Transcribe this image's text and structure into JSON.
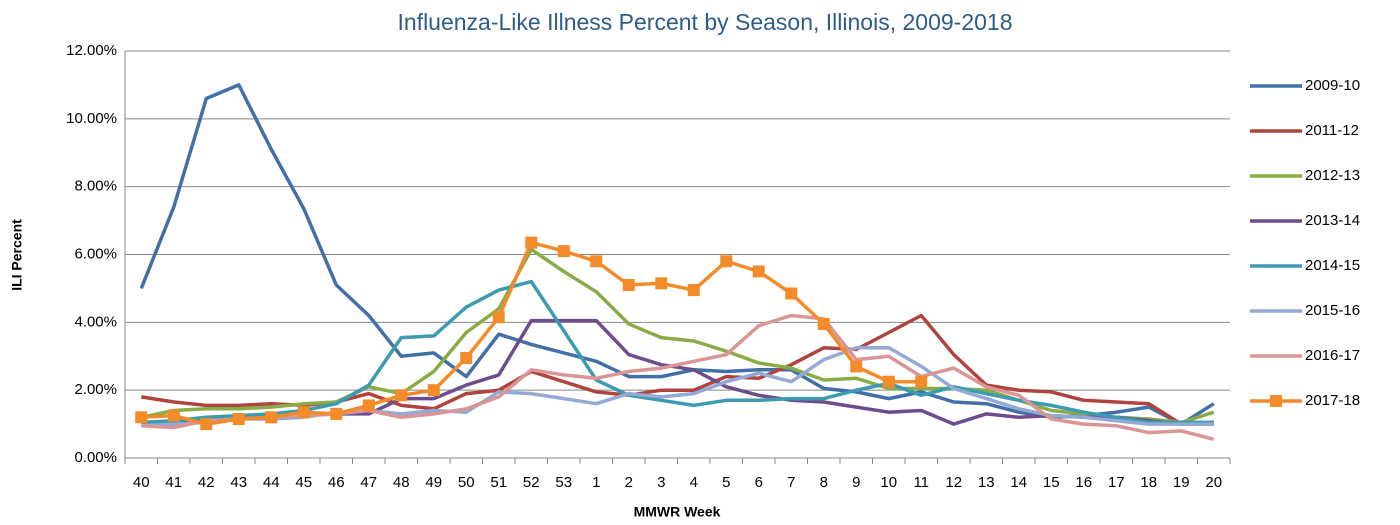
{
  "chart_data": {
    "type": "line",
    "title": "Influenza-Like Illness Percent by Season, Illinois, 2009-2018",
    "xlabel": "MMWR Week",
    "ylabel": "ILI Percent",
    "categories": [
      "40",
      "41",
      "42",
      "43",
      "44",
      "45",
      "46",
      "47",
      "48",
      "49",
      "50",
      "51",
      "52",
      "53",
      "1",
      "2",
      "3",
      "4",
      "5",
      "6",
      "7",
      "8",
      "9",
      "10",
      "11",
      "12",
      "13",
      "14",
      "15",
      "16",
      "17",
      "18",
      "19",
      "20"
    ],
    "ylim": [
      0,
      12
    ],
    "yticks": [
      {
        "value": 0,
        "label": "0.00%"
      },
      {
        "value": 2,
        "label": "2.00%"
      },
      {
        "value": 4,
        "label": "4.00%"
      },
      {
        "value": 6,
        "label": "6.00%"
      },
      {
        "value": 8,
        "label": "8.00%"
      },
      {
        "value": 10,
        "label": "10.00%"
      },
      {
        "value": 12,
        "label": "12.00%"
      }
    ],
    "grid": true,
    "legend": "right",
    "series": [
      {
        "name": "2009-10",
        "color": "#4170a8",
        "values": [
          5.0,
          7.4,
          10.6,
          11.0,
          9.1,
          7.35,
          5.1,
          4.2,
          3.0,
          3.1,
          2.4,
          3.65,
          3.35,
          3.1,
          2.85,
          2.4,
          2.4,
          2.6,
          2.55,
          2.6,
          2.6,
          2.05,
          1.95,
          1.75,
          1.95,
          1.65,
          1.6,
          1.35,
          1.2,
          1.25,
          1.35,
          1.5,
          1.0,
          1.6
        ]
      },
      {
        "name": "2011-12",
        "color": "#b1433f",
        "values": [
          1.8,
          1.65,
          1.55,
          1.55,
          1.6,
          1.55,
          1.65,
          1.9,
          1.55,
          1.45,
          1.9,
          2.0,
          2.55,
          2.25,
          1.95,
          1.85,
          2.0,
          2.0,
          2.4,
          2.35,
          2.75,
          3.25,
          3.2,
          3.7,
          4.2,
          3.05,
          2.15,
          2.0,
          1.95,
          1.7,
          1.65,
          1.6,
          1.0,
          1.05
        ]
      },
      {
        "name": "2012-13",
        "color": "#8aac46",
        "values": [
          1.2,
          1.4,
          1.45,
          1.45,
          1.5,
          1.6,
          1.65,
          2.1,
          1.9,
          2.55,
          3.7,
          4.4,
          6.15,
          5.5,
          4.9,
          3.95,
          3.55,
          3.45,
          3.15,
          2.8,
          2.65,
          2.3,
          2.35,
          2.05,
          2.05,
          2.05,
          2.0,
          1.7,
          1.4,
          1.3,
          1.2,
          1.15,
          1.05,
          1.35
        ]
      },
      {
        "name": "2013-14",
        "color": "#6d4c8e",
        "values": [
          1.0,
          1.05,
          1.1,
          1.2,
          1.25,
          1.25,
          1.3,
          1.3,
          1.75,
          1.75,
          2.15,
          2.45,
          4.05,
          4.05,
          4.05,
          3.05,
          2.75,
          2.6,
          2.1,
          1.85,
          1.7,
          1.65,
          1.5,
          1.35,
          1.4,
          1.0,
          1.3,
          1.2,
          1.25,
          1.2,
          1.2,
          1.1,
          1.0,
          1.0
        ]
      },
      {
        "name": "2014-15",
        "color": "#3c9bb1",
        "values": [
          1.05,
          1.1,
          1.2,
          1.25,
          1.3,
          1.4,
          1.6,
          2.15,
          3.55,
          3.6,
          4.45,
          4.95,
          5.2,
          3.75,
          2.3,
          1.85,
          1.7,
          1.55,
          1.7,
          1.7,
          1.75,
          1.75,
          2.0,
          2.2,
          1.85,
          2.1,
          1.9,
          1.7,
          1.55,
          1.35,
          1.2,
          1.05,
          1.05,
          1.05
        ]
      },
      {
        "name": "2015-16",
        "color": "#93aad6",
        "values": [
          0.95,
          1.0,
          1.05,
          1.15,
          1.15,
          1.2,
          1.35,
          1.4,
          1.3,
          1.4,
          1.35,
          1.95,
          1.9,
          1.75,
          1.6,
          1.9,
          1.8,
          1.9,
          2.25,
          2.5,
          2.25,
          2.9,
          3.25,
          3.25,
          2.7,
          2.05,
          1.75,
          1.45,
          1.25,
          1.2,
          1.1,
          1.0,
          1.0,
          1.0
        ]
      },
      {
        "name": "2016-17",
        "color": "#d99694",
        "values": [
          0.95,
          0.9,
          1.1,
          1.15,
          1.2,
          1.25,
          1.3,
          1.4,
          1.2,
          1.3,
          1.45,
          1.8,
          2.6,
          2.45,
          2.35,
          2.55,
          2.65,
          2.85,
          3.05,
          3.9,
          4.2,
          4.1,
          2.9,
          3.0,
          2.4,
          2.65,
          2.1,
          1.85,
          1.15,
          1.0,
          0.95,
          0.75,
          0.8,
          0.55
        ]
      },
      {
        "name": "2017-18",
        "color": "#f38b2b",
        "marker": "square",
        "values": [
          1.2,
          1.25,
          1.0,
          1.15,
          1.2,
          1.35,
          1.3,
          1.55,
          1.85,
          2.0,
          2.95,
          4.15,
          6.35,
          6.1,
          5.8,
          5.1,
          5.15,
          4.95,
          5.8,
          5.5,
          4.85,
          3.95,
          2.7,
          2.25,
          2.25,
          null,
          null,
          null,
          null,
          null,
          null,
          null,
          null,
          null
        ]
      }
    ]
  }
}
